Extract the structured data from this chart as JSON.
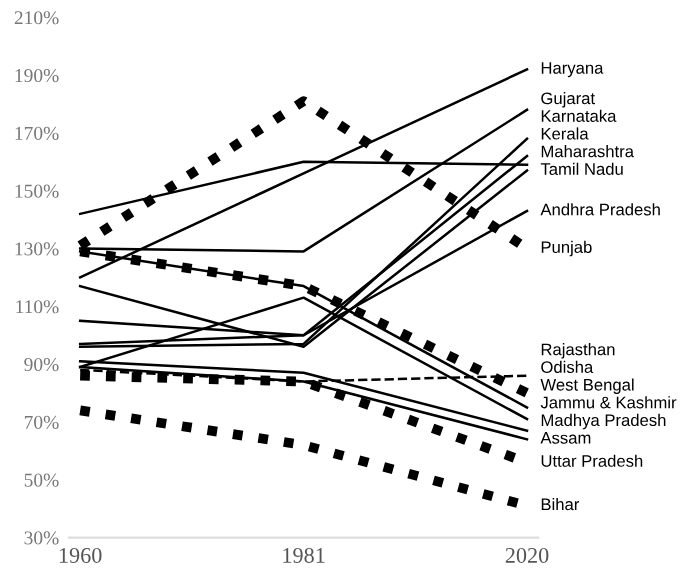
{
  "chart_data": {
    "type": "line",
    "categories": [
      "1960",
      "1981",
      "2020"
    ],
    "ylim": [
      30,
      210
    ],
    "yticks": [
      {
        "value": 30,
        "label": "30%"
      },
      {
        "value": 50,
        "label": "50%"
      },
      {
        "value": 70,
        "label": "70%"
      },
      {
        "value": 90,
        "label": "90%"
      },
      {
        "value": 110,
        "label": "110%"
      },
      {
        "value": 130,
        "label": "130%"
      },
      {
        "value": 150,
        "label": "150%"
      },
      {
        "value": 170,
        "label": "170%"
      },
      {
        "value": 190,
        "label": "190%"
      },
      {
        "value": 210,
        "label": "210%"
      }
    ],
    "grid": false,
    "legend": false,
    "marker": "none",
    "series": [
      {
        "name": "Haryana",
        "color": "#000000",
        "line_style": "solid",
        "values": [
          120,
          156,
          192
        ]
      },
      {
        "name": "Gujarat",
        "color": "#000000",
        "line_style": "solid",
        "values": [
          130,
          129,
          178
        ]
      },
      {
        "name": "Karnataka",
        "color": "#000000",
        "line_style": "solid",
        "values": [
          96,
          97,
          168
        ]
      },
      {
        "name": "Kerala",
        "color": "#000000",
        "line_style": "solid",
        "values": [
          97,
          100,
          162
        ]
      },
      {
        "name": "Maharashtra",
        "color": "#000000",
        "line_style": "solid",
        "values": [
          142,
          160,
          159
        ]
      },
      {
        "name": "Tamil Nadu",
        "color": "#000000",
        "line_style": "solid",
        "values": [
          117,
          96,
          157
        ]
      },
      {
        "name": "Andhra Pradesh",
        "color": "#000000",
        "line_style": "solid",
        "values": [
          105,
          100,
          143
        ]
      },
      {
        "name": "Punjab",
        "color": "#000000",
        "line_style": "dotted",
        "values": [
          131,
          181,
          130
        ]
      },
      {
        "name": "Rajasthan",
        "color": "#000000",
        "line_style": "dashed",
        "values": [
          88,
          84,
          86
        ]
      },
      {
        "name": "Odisha",
        "color": "#000000",
        "line_style": "dotted",
        "values": [
          129,
          117,
          80
        ]
      },
      {
        "name": "West Bengal",
        "color": "#000000",
        "line_style": "solid",
        "values": [
          129,
          117,
          75
        ]
      },
      {
        "name": "Jammu & Kashmir",
        "color": "#000000",
        "line_style": "solid",
        "values": [
          89,
          113,
          71
        ]
      },
      {
        "name": "Madhya Pradesh",
        "color": "#000000",
        "line_style": "solid",
        "values": [
          91,
          87,
          67
        ]
      },
      {
        "name": "Assam",
        "color": "#000000",
        "line_style": "solid",
        "values": [
          89,
          84,
          64
        ]
      },
      {
        "name": "Uttar Pradesh",
        "color": "#000000",
        "line_style": "dotted",
        "values": [
          86,
          84,
          56
        ]
      },
      {
        "name": "Bihar",
        "color": "#000000",
        "line_style": "dotted",
        "values": [
          74,
          62,
          41
        ]
      }
    ]
  }
}
